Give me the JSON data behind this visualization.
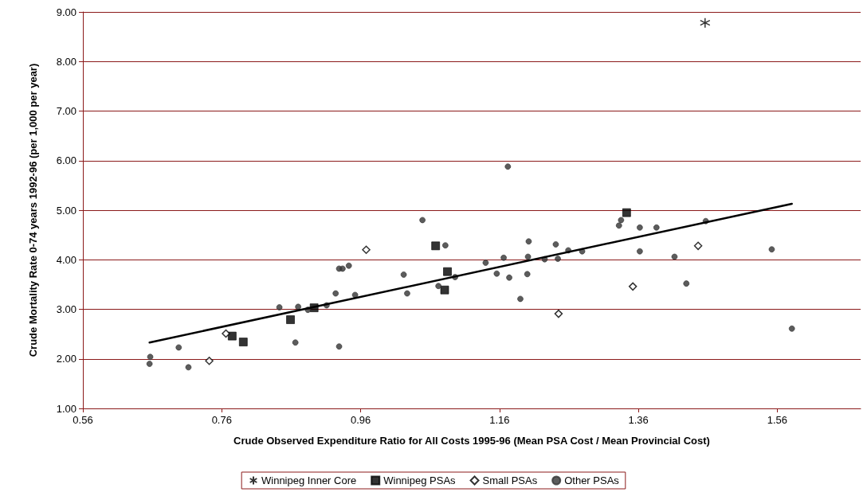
{
  "chart_data": {
    "type": "scatter",
    "xlabel": "Crude Observed Expenditure Ratio for All Costs 1995-96 (Mean PSA Cost / Mean Provincial Cost)",
    "ylabel": "Crude Mortality Rate 0-74 years 1992-96 (per 1,000 per year)",
    "xlim": [
      0.56,
      1.68
    ],
    "xticks": [
      0.56,
      0.76,
      0.96,
      1.16,
      1.36,
      1.56
    ],
    "ylim": [
      1,
      9
    ],
    "yticks": [
      {
        "value": 1,
        "label": "1.00"
      },
      {
        "value": 2,
        "label": "2.00"
      },
      {
        "value": 3,
        "label": "3.00"
      },
      {
        "value": 4,
        "label": "4.00"
      },
      {
        "value": 5,
        "label": "5.00"
      },
      {
        "value": 6,
        "label": "6.00"
      },
      {
        "value": 7,
        "label": "7.00"
      },
      {
        "value": 8,
        "label": "8.00"
      },
      {
        "value": 9,
        "label": "9.00"
      }
    ],
    "grid": "y",
    "legend": "bottom",
    "series": [
      {
        "name": "Winnipeg Inner Core",
        "color": "#000000",
        "marker": "cross",
        "x": [
          1.456
        ],
        "values": [
          8.78
        ]
      },
      {
        "name": "Winnipeg PSAs",
        "color": "#000000",
        "marker": "square",
        "x": [
          0.775,
          0.791,
          0.859,
          0.893,
          1.068,
          1.085,
          1.081,
          1.343
        ],
        "values": [
          2.46,
          2.34,
          2.79,
          3.03,
          4.28,
          3.76,
          3.39,
          4.95
        ]
      },
      {
        "name": "Small PSAs",
        "color": "#000000",
        "marker": "diamond",
        "x": [
          0.742,
          0.766,
          0.968,
          1.245,
          1.352,
          1.446
        ],
        "values": [
          1.96,
          2.51,
          4.2,
          2.91,
          3.46,
          4.28
        ]
      },
      {
        "name": "Other PSAs",
        "color": "#333333",
        "marker": "circle",
        "x": [
          0.656,
          0.657,
          0.698,
          0.712,
          0.843,
          0.87,
          0.866,
          0.884,
          0.911,
          0.924,
          0.929,
          0.934,
          0.943,
          0.929,
          0.952,
          1.022,
          1.027,
          1.049,
          1.082,
          1.072,
          1.096,
          1.14,
          1.156,
          1.166,
          1.172,
          1.174,
          1.19,
          1.2,
          1.201,
          1.202,
          1.225,
          1.241,
          1.244,
          1.259,
          1.279,
          1.332,
          1.335,
          1.362,
          1.362,
          1.386,
          1.412,
          1.429,
          1.457,
          1.552,
          1.581
        ],
        "values": [
          1.9,
          2.04,
          2.23,
          1.83,
          3.04,
          3.05,
          2.33,
          2.99,
          3.08,
          3.32,
          3.82,
          3.82,
          3.88,
          2.25,
          3.29,
          3.7,
          3.32,
          4.8,
          4.29,
          3.47,
          3.65,
          3.94,
          3.72,
          4.04,
          5.88,
          3.64,
          3.21,
          3.71,
          4.06,
          4.37,
          4.01,
          4.31,
          4.02,
          4.19,
          4.17,
          4.69,
          4.8,
          4.65,
          4.17,
          4.65,
          4.06,
          3.52,
          4.78,
          4.21,
          2.61
        ]
      },
      {
        "type": "line",
        "color": "#000000",
        "marker": "none",
        "line_style": "solid",
        "x": [
          0.656,
          1.581
        ],
        "values": [
          2.33,
          5.13
        ]
      }
    ]
  }
}
